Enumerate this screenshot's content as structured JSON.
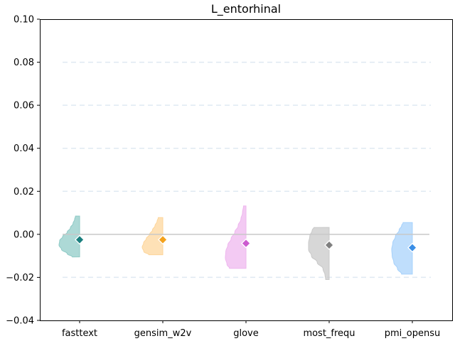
{
  "chart_data": {
    "type": "violin",
    "title": "L_entorhinal",
    "xlabel": "",
    "ylabel": "",
    "ylim": [
      -0.04,
      0.1
    ],
    "yticks": [
      -0.04,
      -0.02,
      0.0,
      0.02,
      0.04,
      0.06,
      0.08,
      0.1
    ],
    "ytick_labels": [
      "−0.04",
      "−0.02",
      "0.00",
      "0.02",
      "0.04",
      "0.06",
      "0.08",
      "0.10"
    ],
    "grid": "horizontal dashed at 0.08, 0.06, 0.04, 0.02, -0.02",
    "reference_line": 0.0,
    "categories": [
      "fasttext",
      "gensim_w2v",
      "glove",
      "most_frequ",
      "pmi_opensu"
    ],
    "series": [
      {
        "name": "fasttext",
        "color": "#1a7f7e",
        "fill": "#8ecac6",
        "mean": -0.0025,
        "min": -0.0105,
        "max": 0.0085,
        "profile": [
          [
            -0.0105,
            0.35
          ],
          [
            -0.009,
            0.6
          ],
          [
            -0.007,
            0.88
          ],
          [
            -0.005,
            1.0
          ],
          [
            -0.003,
            0.97
          ],
          [
            -0.001,
            0.82
          ],
          [
            0.001,
            0.6
          ],
          [
            0.003,
            0.45
          ],
          [
            0.005,
            0.32
          ],
          [
            0.007,
            0.24
          ],
          [
            0.0085,
            0.2
          ]
        ]
      },
      {
        "name": "gensim_w2v",
        "color": "#f4a21d",
        "fill": "#fdd59a",
        "mean": -0.0025,
        "min": -0.0095,
        "max": 0.0078,
        "profile": [
          [
            -0.0095,
            0.68
          ],
          [
            -0.008,
            0.92
          ],
          [
            -0.006,
            1.0
          ],
          [
            -0.004,
            0.93
          ],
          [
            -0.002,
            0.8
          ],
          [
            0.0,
            0.64
          ],
          [
            0.002,
            0.5
          ],
          [
            0.004,
            0.38
          ],
          [
            0.006,
            0.28
          ],
          [
            0.0078,
            0.22
          ]
        ]
      },
      {
        "name": "glove",
        "color": "#cc5bcf",
        "fill": "#eeb6ee",
        "mean": -0.0042,
        "min": -0.0158,
        "max": 0.0132,
        "profile": [
          [
            -0.0158,
            0.8
          ],
          [
            -0.014,
            0.92
          ],
          [
            -0.011,
            1.0
          ],
          [
            -0.008,
            0.98
          ],
          [
            -0.005,
            0.88
          ],
          [
            -0.002,
            0.72
          ],
          [
            0.001,
            0.54
          ],
          [
            0.004,
            0.38
          ],
          [
            0.007,
            0.25
          ],
          [
            0.01,
            0.17
          ],
          [
            0.0132,
            0.12
          ]
        ]
      },
      {
        "name": "most_frequ",
        "color": "#7f7f7f",
        "fill": "#c8c8c8",
        "mean": -0.005,
        "min": -0.021,
        "max": 0.0032,
        "profile": [
          [
            -0.021,
            0.17
          ],
          [
            -0.019,
            0.2
          ],
          [
            -0.016,
            0.3
          ],
          [
            -0.013,
            0.58
          ],
          [
            -0.01,
            0.86
          ],
          [
            -0.007,
            1.0
          ],
          [
            -0.004,
            1.0
          ],
          [
            -0.001,
            0.94
          ],
          [
            0.002,
            0.82
          ],
          [
            0.0032,
            0.74
          ]
        ]
      },
      {
        "name": "pmi_opensu",
        "color": "#3a8ee6",
        "fill": "#a6d1fb",
        "mean": -0.0062,
        "min": -0.0185,
        "max": 0.0055,
        "profile": [
          [
            -0.0185,
            0.52
          ],
          [
            -0.016,
            0.72
          ],
          [
            -0.013,
            0.9
          ],
          [
            -0.01,
            0.98
          ],
          [
            -0.007,
            1.0
          ],
          [
            -0.004,
            0.95
          ],
          [
            -0.001,
            0.82
          ],
          [
            0.002,
            0.64
          ],
          [
            0.004,
            0.52
          ],
          [
            0.0055,
            0.45
          ]
        ]
      }
    ]
  }
}
